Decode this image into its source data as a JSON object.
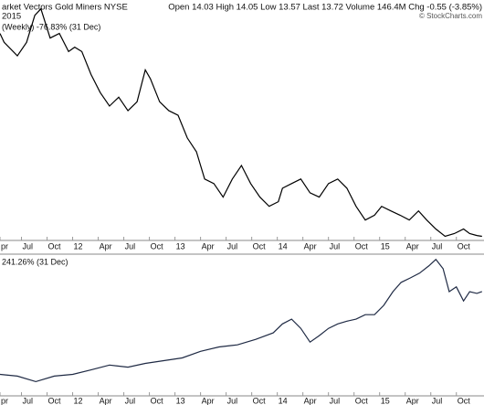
{
  "header": {
    "title": "arket Vectors Gold Miners NYSE",
    "date": "2015",
    "quote": "Open 14.03  High 14.05  Low 13.57  Last 13.72  Volume 146.4M  Chg -0.55 (-3.85%)",
    "credit": "© StockCharts.com"
  },
  "chart_data": [
    {
      "type": "line",
      "x": [
        2011.29,
        2011.33,
        2011.46,
        2011.55,
        2011.63,
        2011.69,
        2011.78,
        2011.87,
        2011.96,
        2012.02,
        2012.09,
        2012.18,
        2012.27,
        2012.36,
        2012.45,
        2012.54,
        2012.63,
        2012.71,
        2012.76,
        2012.85,
        2012.94,
        2013.03,
        2013.12,
        2013.21,
        2013.29,
        2013.38,
        2013.47,
        2013.56,
        2013.65,
        2013.74,
        2013.83,
        2013.92,
        2014.01,
        2014.05,
        2014.14,
        2014.23,
        2014.32,
        2014.41,
        2014.5,
        2014.59,
        2014.68,
        2014.77,
        2014.86,
        2014.95,
        2015.02,
        2015.11,
        2015.2,
        2015.29,
        2015.38,
        2015.46,
        2015.55,
        2015.64,
        2015.73,
        2015.82,
        2015.88,
        2015.95,
        2016.0
      ],
      "series": [
        {
          "name": "(Weekly) -76.83% (31 Dec)",
          "color": "#000000",
          "values": [
            -1.7,
            -5,
            -10,
            -5,
            5,
            7.4,
            -3.4,
            -1.7,
            -8.4,
            -6.8,
            -8.4,
            -16.9,
            -23.6,
            -28.6,
            -25.3,
            -30.3,
            -27,
            -15.2,
            -18.5,
            -27,
            -30.3,
            -32,
            -40.4,
            -45.5,
            -55.6,
            -57.3,
            -62.3,
            -55.6,
            -50.6,
            -57.3,
            -62.3,
            -65.7,
            -64,
            -59,
            -57.3,
            -55.6,
            -60.7,
            -62.3,
            -57.3,
            -55.6,
            -59,
            -65.7,
            -70.8,
            -69,
            -65.7,
            -67.4,
            -69,
            -70.8,
            -67.4,
            -70.8,
            -74.1,
            -76.8,
            -75.8,
            -74.1,
            -75.8,
            -76.5,
            -76.83
          ]
        }
      ],
      "xlim": [
        2011.29,
        2016.02
      ],
      "xticks": [
        {
          "value": 2011.29,
          "label": "pr"
        },
        {
          "value": 2011.5,
          "label": "Jul"
        },
        {
          "value": 2011.75,
          "label": "Oct"
        },
        {
          "value": 2012,
          "label": "12"
        },
        {
          "value": 2012.25,
          "label": "Apr"
        },
        {
          "value": 2012.5,
          "label": "Jul"
        },
        {
          "value": 2012.75,
          "label": "Oct"
        },
        {
          "value": 2013,
          "label": "13"
        },
        {
          "value": 2013.25,
          "label": "Apr"
        },
        {
          "value": 2013.5,
          "label": "Jul"
        },
        {
          "value": 2013.75,
          "label": "Oct"
        },
        {
          "value": 2014,
          "label": "14"
        },
        {
          "value": 2014.25,
          "label": "Apr"
        },
        {
          "value": 2014.5,
          "label": "Jul"
        },
        {
          "value": 2014.75,
          "label": "Oct"
        },
        {
          "value": 2015,
          "label": "15"
        },
        {
          "value": 2015.25,
          "label": "Apr"
        },
        {
          "value": 2015.5,
          "label": "Jul"
        },
        {
          "value": 2015.75,
          "label": "Oct"
        }
      ],
      "ylim": [
        -78,
        10
      ]
    },
    {
      "type": "line",
      "x": [
        2011.29,
        2011.46,
        2011.64,
        2011.82,
        2012.0,
        2012.18,
        2012.36,
        2012.54,
        2012.71,
        2012.89,
        2013.07,
        2013.25,
        2013.43,
        2013.61,
        2013.79,
        2013.96,
        2014.05,
        2014.14,
        2014.23,
        2014.32,
        2014.41,
        2014.5,
        2014.59,
        2014.68,
        2014.77,
        2014.86,
        2014.95,
        2015.04,
        2015.13,
        2015.21,
        2015.3,
        2015.39,
        2015.48,
        2015.55,
        2015.62,
        2015.68,
        2015.75,
        2015.82,
        2015.88,
        2015.95,
        2016.0
      ],
      "series": [
        {
          "name": "241.26% (31 Dec)",
          "color": "#1f2a44",
          "values": [
            0,
            -5,
            -21,
            -5,
            0,
            13,
            27,
            21,
            32,
            40,
            48,
            67,
            80,
            86,
            102,
            121,
            147,
            161,
            134,
            94,
            113,
            134,
            147,
            155,
            161,
            174,
            174,
            201,
            241,
            268,
            281,
            295,
            316,
            335,
            308,
            241,
            255,
            214,
            241,
            236,
            241.26
          ]
        }
      ],
      "xlim": [
        2011.29,
        2016.02
      ],
      "xticks": [
        {
          "value": 2011.29,
          "label": "pr"
        },
        {
          "value": 2011.5,
          "label": "Jul"
        },
        {
          "value": 2011.75,
          "label": "Oct"
        },
        {
          "value": 2012,
          "label": "12"
        },
        {
          "value": 2012.25,
          "label": "Apr"
        },
        {
          "value": 2012.5,
          "label": "Jul"
        },
        {
          "value": 2012.75,
          "label": "Oct"
        },
        {
          "value": 2013,
          "label": "13"
        },
        {
          "value": 2013.25,
          "label": "Apr"
        },
        {
          "value": 2013.5,
          "label": "Jul"
        },
        {
          "value": 2013.75,
          "label": "Oct"
        },
        {
          "value": 2014,
          "label": "14"
        },
        {
          "value": 2014.25,
          "label": "Apr"
        },
        {
          "value": 2014.5,
          "label": "Jul"
        },
        {
          "value": 2014.75,
          "label": "Oct"
        },
        {
          "value": 2015,
          "label": "15"
        },
        {
          "value": 2015.25,
          "label": "Apr"
        },
        {
          "value": 2015.5,
          "label": "Jul"
        },
        {
          "value": 2015.75,
          "label": "Oct"
        }
      ],
      "ylim": [
        -60,
        345
      ]
    }
  ]
}
